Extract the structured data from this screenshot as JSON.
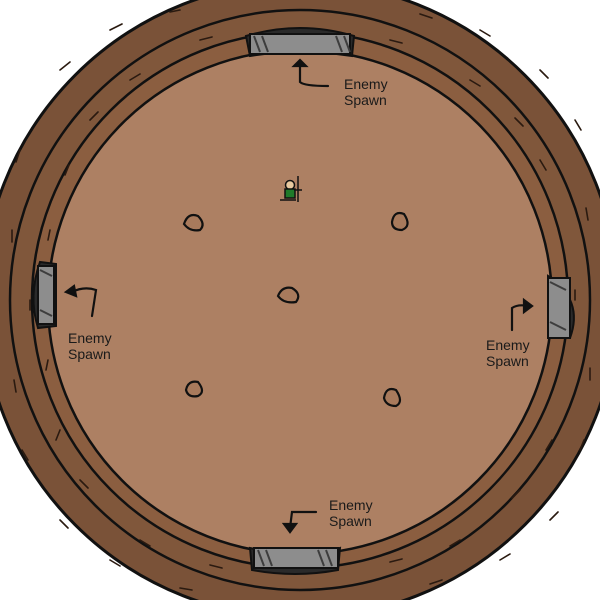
{
  "map": {
    "colors": {
      "outer_wall": "#7a5238",
      "wall_band": "#8b5e40",
      "arena_floor": "#ad8063",
      "outline": "#111111",
      "gate": "#8d8d8d",
      "gate_dark": "#3d3d3d",
      "rock": "#a87a5c",
      "player_tunic": "#1f7a2a",
      "player_skin": "#e8c9a0"
    },
    "spawns": [
      {
        "id": "north",
        "line1": "Enemy",
        "line2": "Spawn",
        "arrow_icon": "arrow-up-icon"
      },
      {
        "id": "west",
        "line1": "Enemy",
        "line2": "Spawn",
        "arrow_icon": "arrow-up-left-icon"
      },
      {
        "id": "east",
        "line1": "Enemy",
        "line2": "Spawn",
        "arrow_icon": "arrow-up-right-icon"
      },
      {
        "id": "south",
        "line1": "Enemy",
        "line2": "Spawn",
        "arrow_icon": "arrow-down-left-icon"
      }
    ],
    "player_icon": "player-character-icon",
    "rock_icon": "rock-obstacle-icon"
  }
}
